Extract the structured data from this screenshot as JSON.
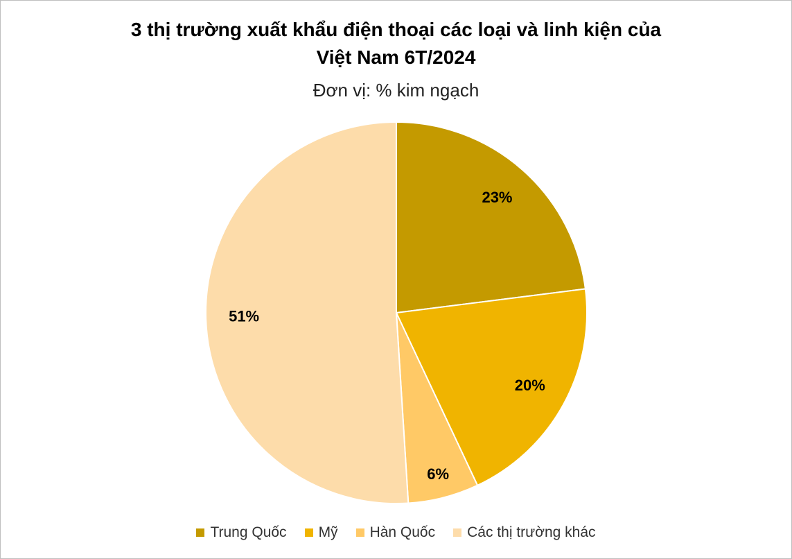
{
  "chart_data": {
    "type": "pie",
    "title": [
      "3 thị trường xuất khẩu điện thoại các loại và linh kiện của",
      "Việt Nam 6T/2024"
    ],
    "subtitle": "Đơn vị: % kim ngạch",
    "categories": [
      "Trung Quốc",
      "Mỹ",
      "Hàn Quốc",
      "Các thị trường khác"
    ],
    "values": [
      23,
      20,
      6,
      51
    ],
    "value_labels": [
      "23%",
      "20%",
      "6%",
      "51%"
    ],
    "colors": [
      "#C49A00",
      "#F0B400",
      "#FFC966",
      "#FDDCAA"
    ],
    "legend": "bottom"
  }
}
